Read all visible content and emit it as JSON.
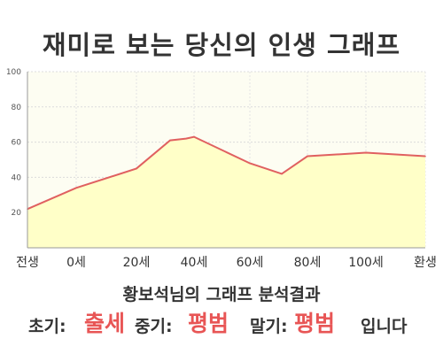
{
  "title": "재미로 보는 당신의 인생 그래프",
  "chart_data": {
    "type": "area",
    "x_ticks": [
      "전생",
      "0세",
      "20세",
      "40세",
      "60세",
      "80세",
      "100세",
      "환생"
    ],
    "y_ticks": [
      "20",
      "40",
      "60",
      "80",
      "100"
    ],
    "ylim": [
      0,
      100
    ],
    "grid": true,
    "series": [
      {
        "x": [
          "전생",
          "0세",
          "20세",
          "28세",
          "35세",
          "40세",
          "60세",
          "70세",
          "80세",
          "100세",
          "환생"
        ],
        "values": [
          22,
          34,
          45,
          61,
          62,
          63,
          48,
          42,
          52,
          54,
          52
        ]
      }
    ],
    "line_color": "#e06060",
    "fill_color": "#ffffc8"
  },
  "result": {
    "heading": "황보석님의 그래프 분석결과",
    "early_label": "초기:",
    "early_value": "출세",
    "middle_label": "중기:",
    "middle_value": "평범",
    "late_label": "말기:",
    "late_value": "평범",
    "suffix": "입니다"
  }
}
